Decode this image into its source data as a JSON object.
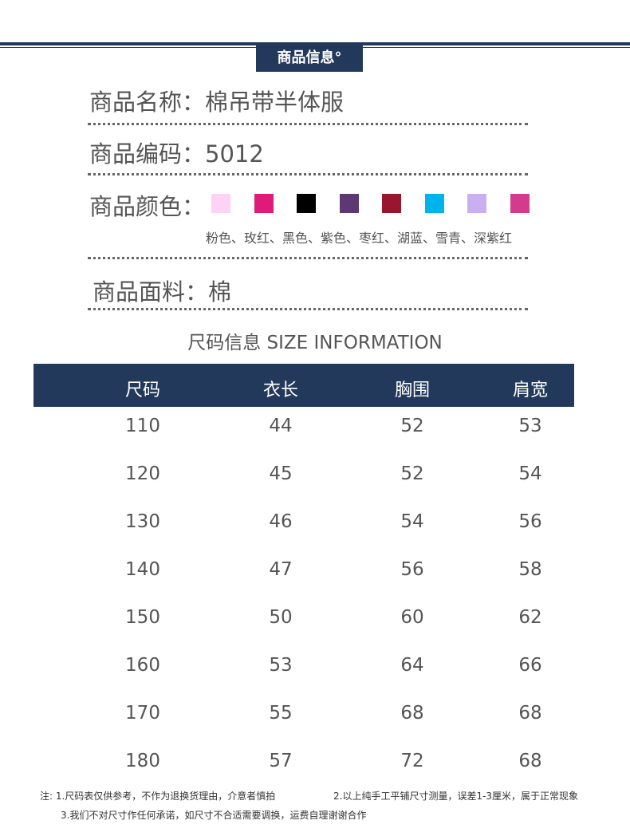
{
  "badge": "商品信息°",
  "name": "商品名称：棉吊带半体服",
  "code": "商品编码：5012",
  "color_label": "商品颜色：",
  "swatches": [
    "#fdd3f3",
    "#e01a78",
    "#000000",
    "#5d3873",
    "#98172e",
    "#00b3ea",
    "#c8b0f0",
    "#d43b8d"
  ],
  "colors_text": "粉色、玫红、黑色、紫色、枣红、湖蓝、雪青、深紫红",
  "fabric": "商品面料：棉",
  "size_title": "尺码信息 SIZE INFORMATION",
  "table": {
    "headers": [
      "尺码",
      "衣长",
      "胸围",
      "肩宽"
    ],
    "rows": [
      [
        "110",
        "44",
        "52",
        "53"
      ],
      [
        "120",
        "45",
        "52",
        "54"
      ],
      [
        "130",
        "46",
        "54",
        "56"
      ],
      [
        "140",
        "47",
        "56",
        "58"
      ],
      [
        "150",
        "50",
        "60",
        "62"
      ],
      [
        "160",
        "53",
        "64",
        "66"
      ],
      [
        "170",
        "55",
        "68",
        "68"
      ],
      [
        "180",
        "57",
        "72",
        "68"
      ]
    ]
  },
  "notes": {
    "n1": "注:  1.尺码表仅供参考，不作为退换货理由，介意者慎拍",
    "n2": "2.以上纯手工平铺尺寸测量，误差1-3厘米，属于正常现象",
    "n3": "3.我们不对尺寸作任何承诺，如尺寸不合适需要调换，运费自理谢谢合作"
  }
}
